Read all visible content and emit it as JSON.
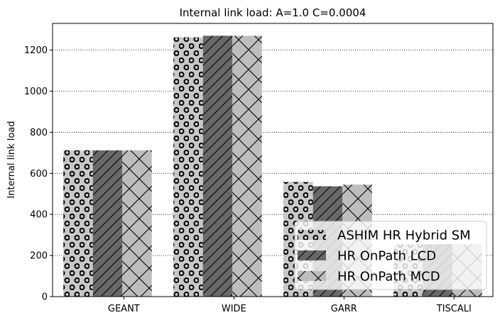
{
  "chart_data": {
    "type": "bar",
    "title": "Internal link load: A=1.0 C=0.0004",
    "xlabel": "",
    "ylabel": "Internal link load",
    "categories": [
      "GEANT",
      "WIDE",
      "GARR",
      "TISCALI"
    ],
    "ylim": [
      0,
      1330
    ],
    "yticks": [
      0,
      200,
      400,
      600,
      800,
      1000,
      1200
    ],
    "grid": "y-dotted",
    "legend_position": "lower-right",
    "series": [
      {
        "name": "ASHIM HR Hybrid SM",
        "values": [
          712,
          1262,
          558,
          255
        ],
        "color": "#c8c8c8",
        "pattern": "circles"
      },
      {
        "name": "HR OnPath LCD",
        "values": [
          712,
          1270,
          537,
          255
        ],
        "color": "#686868",
        "pattern": "diagonal"
      },
      {
        "name": "HR OnPath MCD",
        "values": [
          712,
          1270,
          545,
          255
        ],
        "color": "#bdbdbd",
        "pattern": "crosshatch"
      }
    ]
  }
}
